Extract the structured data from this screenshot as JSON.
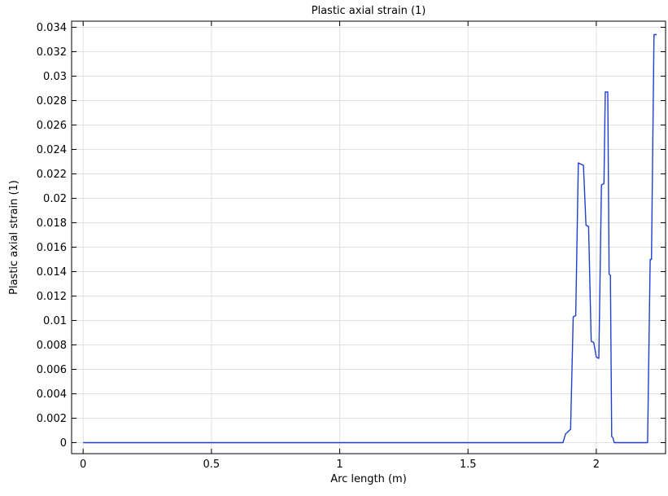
{
  "chart_data": {
    "type": "line",
    "title": "Plastic axial strain (1)",
    "xlabel": "Arc length (m)",
    "ylabel": "Plastic axial strain (1)",
    "xlim": [
      -0.045,
      2.27
    ],
    "ylim": [
      -0.0009,
      0.0345
    ],
    "x_ticks": [
      0,
      0.5,
      1,
      1.5,
      2
    ],
    "x_tick_labels": [
      "0",
      "0.5",
      "1",
      "1.5",
      "2"
    ],
    "y_ticks": [
      0,
      0.002,
      0.004,
      0.006,
      0.008,
      0.01,
      0.012,
      0.014,
      0.016,
      0.018,
      0.02,
      0.022,
      0.024,
      0.026,
      0.028,
      0.03,
      0.032,
      0.034
    ],
    "y_tick_labels": [
      "0",
      "0.002",
      "0.004",
      "0.006",
      "0.008",
      "0.01",
      "0.012",
      "0.014",
      "0.016",
      "0.018",
      "0.02",
      "0.022",
      "0.024",
      "0.026",
      "0.028",
      "0.03",
      "0.032",
      "0.034"
    ],
    "grid": true,
    "line_color": "#1f3fd1",
    "series": [
      {
        "x": [
          0,
          1.87,
          1.88,
          1.9,
          1.91,
          1.92,
          1.93,
          1.94,
          1.95,
          1.96,
          1.97,
          1.98,
          1.99,
          2.0,
          2.01,
          2.02,
          2.03,
          2.035,
          2.045,
          2.05,
          2.055,
          2.06,
          2.065,
          2.07,
          2.08,
          2.09,
          2.1,
          2.11,
          2.2,
          2.21,
          2.215,
          2.225,
          2.235
        ],
        "y": [
          0,
          0,
          0.0007,
          0.0011,
          0.0103,
          0.0104,
          0.0229,
          0.0228,
          0.0227,
          0.0178,
          0.0177,
          0.0083,
          0.0082,
          0.007,
          0.0069,
          0.0211,
          0.0212,
          0.0287,
          0.0287,
          0.0138,
          0.0137,
          0.0005,
          0.0004,
          0.0,
          0.0,
          0.0,
          0.0,
          0.0,
          0.0,
          0.015,
          0.015,
          0.0334,
          0.0334
        ]
      }
    ]
  }
}
